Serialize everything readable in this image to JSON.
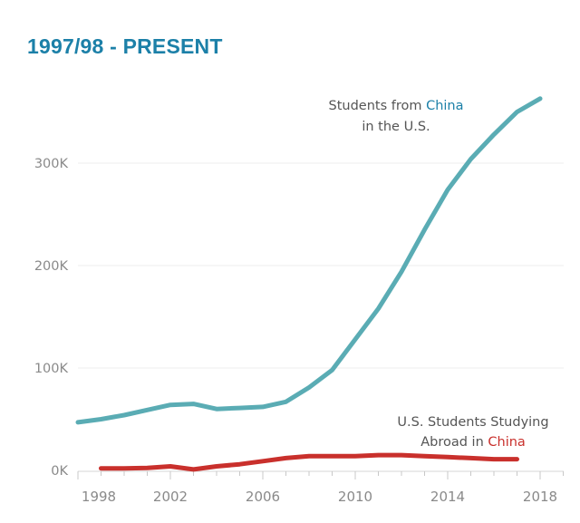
{
  "title": "1997/98 - PRESENT",
  "colors": {
    "title": "#1c80a8",
    "china_in_us": "#5aacb4",
    "us_in_china": "#c9302c",
    "text": "#555555",
    "ticks": "#8a8a8a",
    "grid": "#eeeeee"
  },
  "chart_data": {
    "type": "line",
    "title": "1997/98 - PRESENT",
    "xlabel": "",
    "ylabel": "",
    "xlim": [
      1998,
      2019
    ],
    "ylim": [
      0,
      350000
    ],
    "grid": true,
    "x_ticks": [
      {
        "value": 1998,
        "label": "1998"
      },
      {
        "value": 2002,
        "label": "2002"
      },
      {
        "value": 2006,
        "label": "2006"
      },
      {
        "value": 2010,
        "label": "2010"
      },
      {
        "value": 2014,
        "label": "2014"
      },
      {
        "value": 2018,
        "label": "2018"
      }
    ],
    "y_ticks": [
      {
        "value": 0,
        "label": "0K"
      },
      {
        "value": 100000,
        "label": "100K"
      },
      {
        "value": 200000,
        "label": "200K"
      },
      {
        "value": 300000,
        "label": "300K"
      }
    ],
    "series": [
      {
        "name": "Students from China in the U.S.",
        "label_line1_prefix": "Students from ",
        "label_line1_highlight": "China",
        "label_line2": "in the U.S.",
        "color": "#5aacb4",
        "x": [
          1998,
          1999,
          2000,
          2001,
          2002,
          2003,
          2004,
          2005,
          2006,
          2007,
          2008,
          2009,
          2010,
          2011,
          2012,
          2013,
          2014,
          2015,
          2016,
          2017,
          2018
        ],
        "values": [
          47000,
          50000,
          54000,
          59000,
          64000,
          65000,
          60000,
          61000,
          62000,
          67000,
          81000,
          98000,
          128000,
          158000,
          194000,
          235000,
          274000,
          304000,
          328000,
          350000,
          363000
        ]
      },
      {
        "name": "U.S. Students Studying Abroad in China",
        "label_line1": "U.S. Students Studying",
        "label_line2_prefix": "Abroad in ",
        "label_line2_highlight": "China",
        "color": "#c9302c",
        "x": [
          1999,
          2000,
          2001,
          2002,
          2003,
          2004,
          2005,
          2006,
          2007,
          2008,
          2009,
          2010,
          2011,
          2012,
          2013,
          2014,
          2015,
          2016,
          2017
        ],
        "values": [
          2000,
          2000,
          2500,
          4000,
          1000,
          4000,
          6000,
          9000,
          12000,
          14000,
          14000,
          14000,
          15000,
          15000,
          14000,
          13000,
          12000,
          11000,
          11000
        ]
      }
    ]
  }
}
